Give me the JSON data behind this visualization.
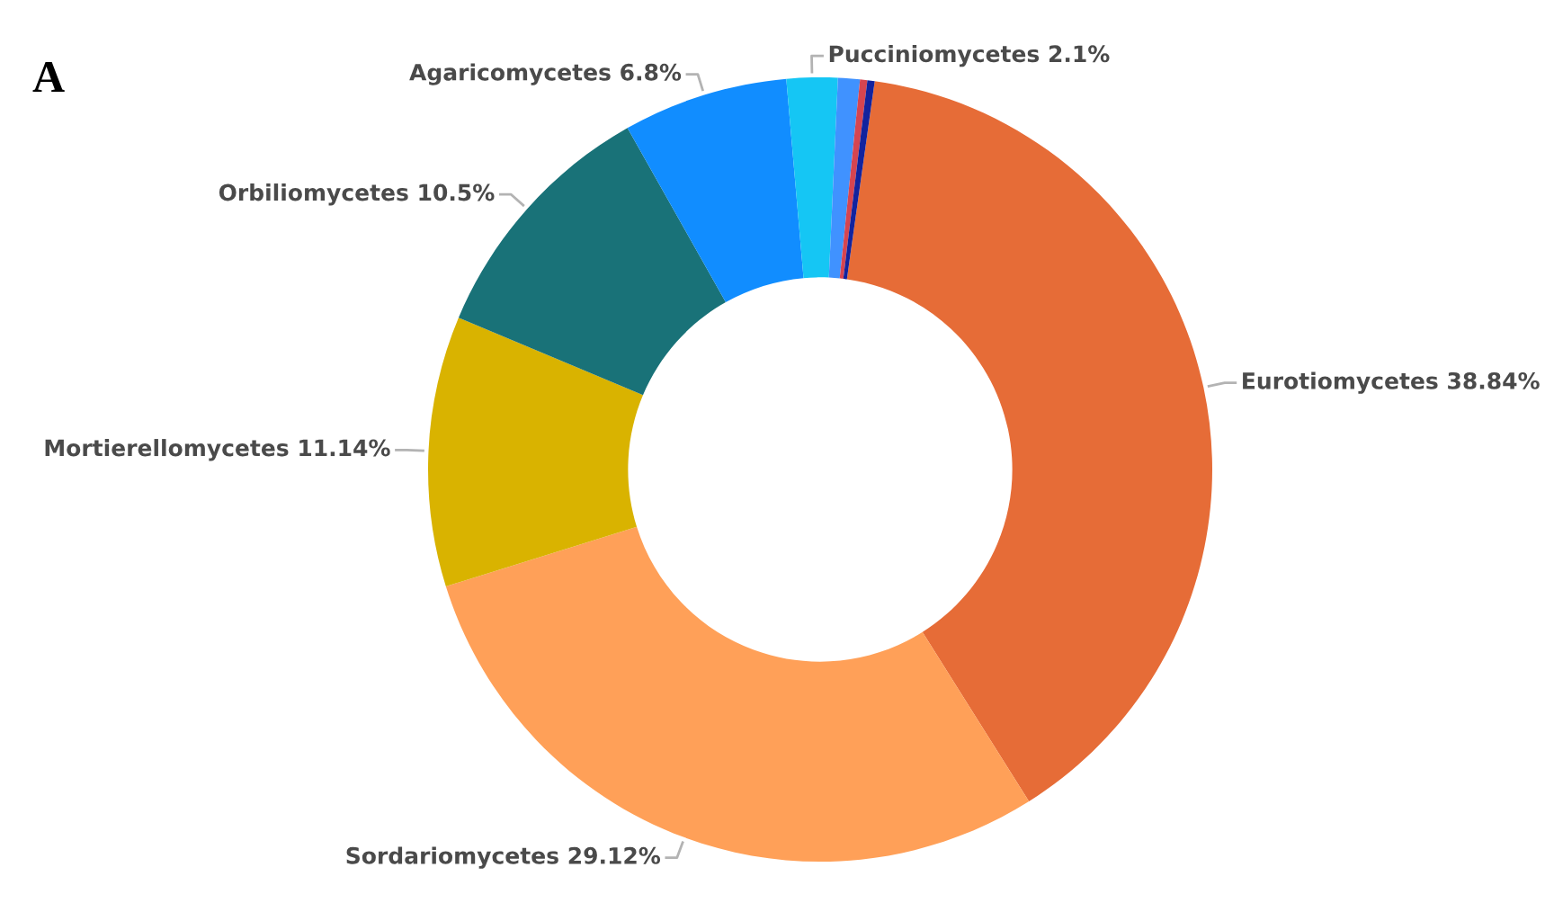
{
  "chart_data": {
    "type": "donut",
    "categories": [
      "Eurotiomycetes",
      "Sordariomycetes",
      "Mortierellomycetes",
      "Orbiliomycetes",
      "Agaricomycetes",
      "Pucciniomycetes",
      null,
      null,
      null
    ],
    "values": [
      38.84,
      29.12,
      11.14,
      10.5,
      6.8,
      2.1,
      0.9,
      0.3,
      0.3
    ],
    "colors": [
      "#e66c37",
      "#ffa058",
      "#d9b300",
      "#197278",
      "#118dff",
      "#15c6f4",
      "#4092ff",
      "#d64550",
      "#12239e"
    ],
    "value_labels": [
      "38.84%",
      "29.12%",
      "11.14%",
      "10.5%",
      "6.8%",
      "2.1%",
      null,
      null,
      null
    ],
    "annotations": [
      "A"
    ]
  }
}
